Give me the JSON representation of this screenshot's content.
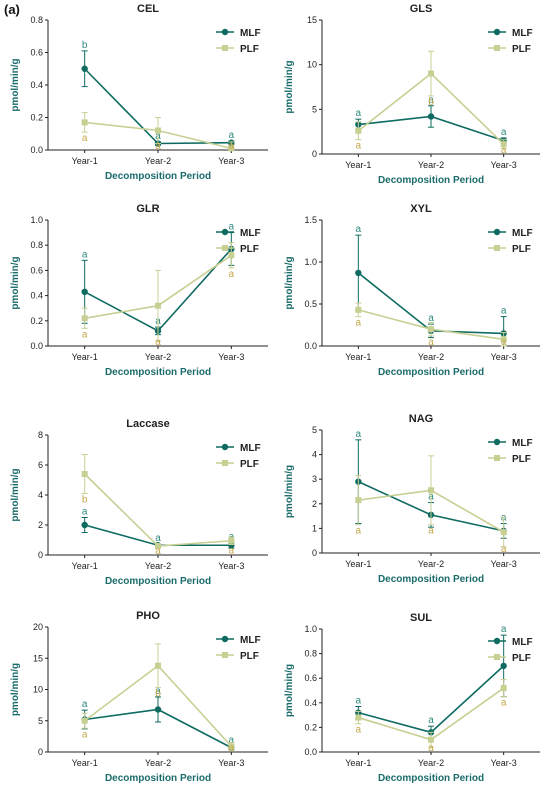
{
  "panel_label": "(a)",
  "colors": {
    "MLF": "#0e6b62",
    "PLF": "#c8cf93",
    "letter_MLF": "#2f8a80",
    "letter_PLF": "#c6a84a",
    "axis": "#222222"
  },
  "chart_data": [
    {
      "type": "line",
      "title": "CEL",
      "xlabel": "Decomposition Period",
      "ylabel": "pmol/min/g",
      "categories": [
        "Year-1",
        "Year-2",
        "Year-3"
      ],
      "ylim": [
        0,
        0.8
      ],
      "yticks": [
        "0.0",
        "0.2",
        "0.4",
        "0.6",
        "0.8"
      ],
      "legend": "top-right",
      "series": [
        {
          "name": "MLF",
          "values": [
            0.5,
            0.04,
            0.045
          ],
          "err": [
            0.11,
            0.01,
            0.01
          ],
          "letters": [
            "b",
            "a",
            "a"
          ]
        },
        {
          "name": "PLF",
          "values": [
            0.17,
            0.12,
            0.01
          ],
          "err": [
            0.06,
            0.08,
            0.04
          ],
          "letters": [
            "a",
            "a",
            "a"
          ]
        }
      ]
    },
    {
      "type": "line",
      "title": "GLS",
      "xlabel": "Decomposition Period",
      "ylabel": "pmol/min/g",
      "categories": [
        "Year-1",
        "Year-2",
        "Year-3"
      ],
      "ylim": [
        0,
        15
      ],
      "yticks": [
        "0",
        "5",
        "10",
        "15"
      ],
      "legend": "top-right",
      "series": [
        {
          "name": "MLF",
          "values": [
            3.3,
            4.2,
            1.5
          ],
          "err": [
            0.6,
            1.2,
            0.3
          ],
          "letters": [
            "a",
            "a",
            "a"
          ]
        },
        {
          "name": "PLF",
          "values": [
            2.6,
            9.0,
            1.1
          ],
          "err": [
            1.0,
            2.5,
            0.5
          ],
          "letters": [
            "a",
            "b",
            "a"
          ]
        }
      ]
    },
    {
      "type": "line",
      "title": "GLR",
      "xlabel": "Decomposition Period",
      "ylabel": "pmol/min/g",
      "categories": [
        "Year-1",
        "Year-2",
        "Year-3"
      ],
      "ylim": [
        0,
        1.0
      ],
      "yticks": [
        "0.0",
        "0.2",
        "0.4",
        "0.6",
        "0.8",
        "1.0"
      ],
      "legend": "top-right",
      "series": [
        {
          "name": "MLF",
          "values": [
            0.43,
            0.12,
            0.77
          ],
          "err": [
            0.25,
            0.03,
            0.13
          ],
          "letters": [
            "a",
            "a",
            "a"
          ]
        },
        {
          "name": "PLF",
          "values": [
            0.22,
            0.32,
            0.72
          ],
          "err": [
            0.08,
            0.28,
            0.1
          ],
          "letters": [
            "a",
            "a",
            "a"
          ]
        }
      ]
    },
    {
      "type": "line",
      "title": "XYL",
      "xlabel": "Decomposition Period",
      "ylabel": "pmol/min/g",
      "categories": [
        "Year-1",
        "Year-2",
        "Year-3"
      ],
      "ylim": [
        0,
        1.5
      ],
      "yticks": [
        "0.0",
        "0.5",
        "1.0",
        "1.5"
      ],
      "legend": "top-right",
      "series": [
        {
          "name": "MLF",
          "values": [
            0.87,
            0.18,
            0.15
          ],
          "err": [
            0.45,
            0.08,
            0.2
          ],
          "letters": [
            "a",
            "a",
            "a"
          ]
        },
        {
          "name": "PLF",
          "values": [
            0.43,
            0.2,
            0.08
          ],
          "err": [
            0.08,
            0.08,
            0.08
          ],
          "letters": [
            "a",
            "a",
            "a"
          ]
        }
      ]
    },
    {
      "type": "line",
      "title": "Laccase",
      "xlabel": "Decomposition Period",
      "ylabel": "pmol/min/g",
      "categories": [
        "Year-1",
        "Year-2",
        "Year-3"
      ],
      "ylim": [
        0,
        8
      ],
      "yticks": [
        "0",
        "2",
        "4",
        "6",
        "8"
      ],
      "legend": "top-right",
      "series": [
        {
          "name": "MLF",
          "values": [
            2.0,
            0.65,
            0.65
          ],
          "err": [
            0.5,
            0.1,
            0.2
          ],
          "letters": [
            "a",
            "a",
            "a"
          ]
        },
        {
          "name": "PLF",
          "values": [
            5.4,
            0.6,
            0.95
          ],
          "err": [
            1.3,
            0.15,
            0.25
          ],
          "letters": [
            "b",
            "a",
            "a"
          ]
        }
      ]
    },
    {
      "type": "line",
      "title": "NAG",
      "xlabel": "Decomposition Period",
      "ylabel": "pmol/min/g",
      "categories": [
        "Year-1",
        "Year-2",
        "Year-3"
      ],
      "ylim": [
        0,
        5
      ],
      "yticks": [
        "0",
        "1",
        "2",
        "3",
        "4",
        "5"
      ],
      "legend": "top-right",
      "series": [
        {
          "name": "MLF",
          "values": [
            2.9,
            1.55,
            0.9
          ],
          "err": [
            1.7,
            0.5,
            0.3
          ],
          "letters": [
            "a",
            "a",
            "a"
          ]
        },
        {
          "name": "PLF",
          "values": [
            2.15,
            2.55,
            0.85
          ],
          "err": [
            1.0,
            1.4,
            0.6
          ],
          "letters": [
            "a",
            "a",
            "a"
          ]
        }
      ]
    },
    {
      "type": "line",
      "title": "PHO",
      "xlabel": "Decomposition Period",
      "ylabel": "pmol/min/g",
      "categories": [
        "Year-1",
        "Year-2",
        "Year-3"
      ],
      "ylim": [
        0,
        20
      ],
      "yticks": [
        "0",
        "5",
        "10",
        "15",
        "20"
      ],
      "legend": "top-right",
      "series": [
        {
          "name": "MLF",
          "values": [
            5.2,
            6.8,
            0.7
          ],
          "err": [
            1.5,
            2.0,
            0.3
          ],
          "letters": [
            "a",
            "a",
            "a"
          ]
        },
        {
          "name": "PLF",
          "values": [
            5.0,
            13.8,
            0.9
          ],
          "err": [
            1.2,
            3.5,
            0.6
          ],
          "letters": [
            "a",
            "b",
            "a"
          ]
        }
      ]
    },
    {
      "type": "line",
      "title": "SUL",
      "xlabel": "Decomposition Period",
      "ylabel": "pmol/min/g",
      "categories": [
        "Year-1",
        "Year-2",
        "Year-3"
      ],
      "ylim": [
        0,
        1.0
      ],
      "yticks": [
        "0.0",
        "0.2",
        "0.4",
        "0.6",
        "0.8",
        "1.0"
      ],
      "legend": "top-right",
      "series": [
        {
          "name": "MLF",
          "values": [
            0.32,
            0.16,
            0.7
          ],
          "err": [
            0.05,
            0.05,
            0.25
          ],
          "letters": [
            "a",
            "a",
            "a"
          ]
        },
        {
          "name": "PLF",
          "values": [
            0.28,
            0.1,
            0.52
          ],
          "err": [
            0.05,
            0.06,
            0.07
          ],
          "letters": [
            "a",
            "a",
            "a"
          ]
        }
      ]
    }
  ]
}
